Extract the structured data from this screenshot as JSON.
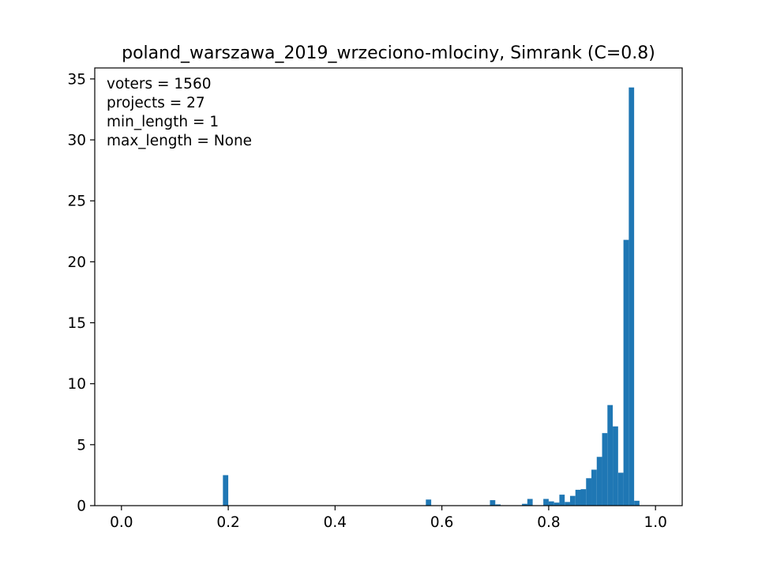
{
  "chart_data": {
    "type": "bar",
    "title": "poland_warszawa_2019_wrzeciono-mlociny, Simrank (C=0.8)",
    "xlabel": "",
    "ylabel": "",
    "xlim": [
      -0.05,
      1.05
    ],
    "ylim": [
      0,
      35.9
    ],
    "x_ticks": [
      0.0,
      0.2,
      0.4,
      0.6,
      0.8,
      1.0
    ],
    "x_tick_labels": [
      "0.0",
      "0.2",
      "0.4",
      "0.6",
      "0.8",
      "1.0"
    ],
    "y_ticks": [
      0,
      5,
      10,
      15,
      20,
      25,
      30,
      35
    ],
    "y_tick_labels": [
      "0",
      "5",
      "10",
      "15",
      "20",
      "25",
      "30",
      "35"
    ],
    "grid": false,
    "bar_color": "#1f77b4",
    "annotations": [
      "voters = 1560",
      "projects = 27",
      "min_length = 1",
      "max_length = None"
    ],
    "bins": [
      {
        "x0": 0.19,
        "x1": 0.2,
        "value": 2.5
      },
      {
        "x0": 0.57,
        "x1": 0.58,
        "value": 0.5
      },
      {
        "x0": 0.69,
        "x1": 0.7,
        "value": 0.45
      },
      {
        "x0": 0.7,
        "x1": 0.71,
        "value": 0.1
      },
      {
        "x0": 0.75,
        "x1": 0.76,
        "value": 0.15
      },
      {
        "x0": 0.76,
        "x1": 0.77,
        "value": 0.55
      },
      {
        "x0": 0.79,
        "x1": 0.8,
        "value": 0.55
      },
      {
        "x0": 0.8,
        "x1": 0.81,
        "value": 0.35
      },
      {
        "x0": 0.81,
        "x1": 0.82,
        "value": 0.25
      },
      {
        "x0": 0.82,
        "x1": 0.83,
        "value": 0.9
      },
      {
        "x0": 0.83,
        "x1": 0.84,
        "value": 0.3
      },
      {
        "x0": 0.84,
        "x1": 0.85,
        "value": 0.8
      },
      {
        "x0": 0.85,
        "x1": 0.86,
        "value": 1.3
      },
      {
        "x0": 0.86,
        "x1": 0.87,
        "value": 1.35
      },
      {
        "x0": 0.87,
        "x1": 0.88,
        "value": 2.25
      },
      {
        "x0": 0.88,
        "x1": 0.89,
        "value": 2.95
      },
      {
        "x0": 0.89,
        "x1": 0.9,
        "value": 4.0
      },
      {
        "x0": 0.9,
        "x1": 0.91,
        "value": 5.95
      },
      {
        "x0": 0.91,
        "x1": 0.92,
        "value": 8.25
      },
      {
        "x0": 0.92,
        "x1": 0.93,
        "value": 6.5
      },
      {
        "x0": 0.93,
        "x1": 0.94,
        "value": 2.7
      },
      {
        "x0": 0.94,
        "x1": 0.95,
        "value": 21.8
      },
      {
        "x0": 0.95,
        "x1": 0.96,
        "value": 34.3
      },
      {
        "x0": 0.96,
        "x1": 0.97,
        "value": 0.4
      }
    ]
  }
}
